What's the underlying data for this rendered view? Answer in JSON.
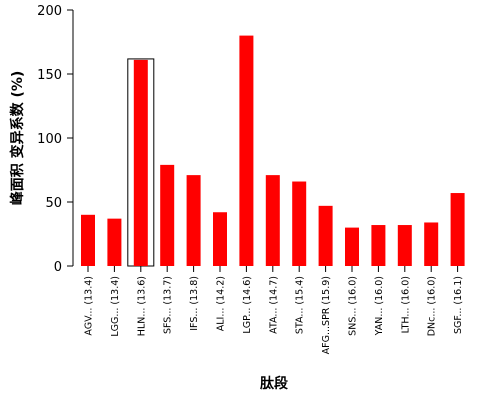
{
  "chart_data": {
    "type": "bar",
    "title": "",
    "xlabel": "肽段",
    "ylabel": "峰面积 变异系数 (%)",
    "ylim": [
      0,
      200
    ],
    "yticks": [
      0,
      50,
      100,
      150,
      200
    ],
    "categories": [
      "AGV... (13.4)",
      "LGG... (13.4)",
      "HLN... (13.6)",
      "SFS... (13.7)",
      "IFS... (13.8)",
      "ALI... (14.2)",
      "LGP... (14.6)",
      "ATA... (14.7)",
      "STA... (15.4)",
      "AFG...SPR (15.9)",
      "SNS... (16.0)",
      "YAN... (16.0)",
      "LTH... (16.0)",
      "DNc... (16.0)",
      "SGF... (16.1)"
    ],
    "values": [
      40,
      37,
      161,
      79,
      71,
      42,
      180,
      71,
      66,
      47,
      30,
      32,
      32,
      34,
      57
    ],
    "highlighted_index": 2,
    "bar_color": "#ff0000",
    "highlight_outline_color": "#000000",
    "grid": false,
    "legend": "none"
  }
}
